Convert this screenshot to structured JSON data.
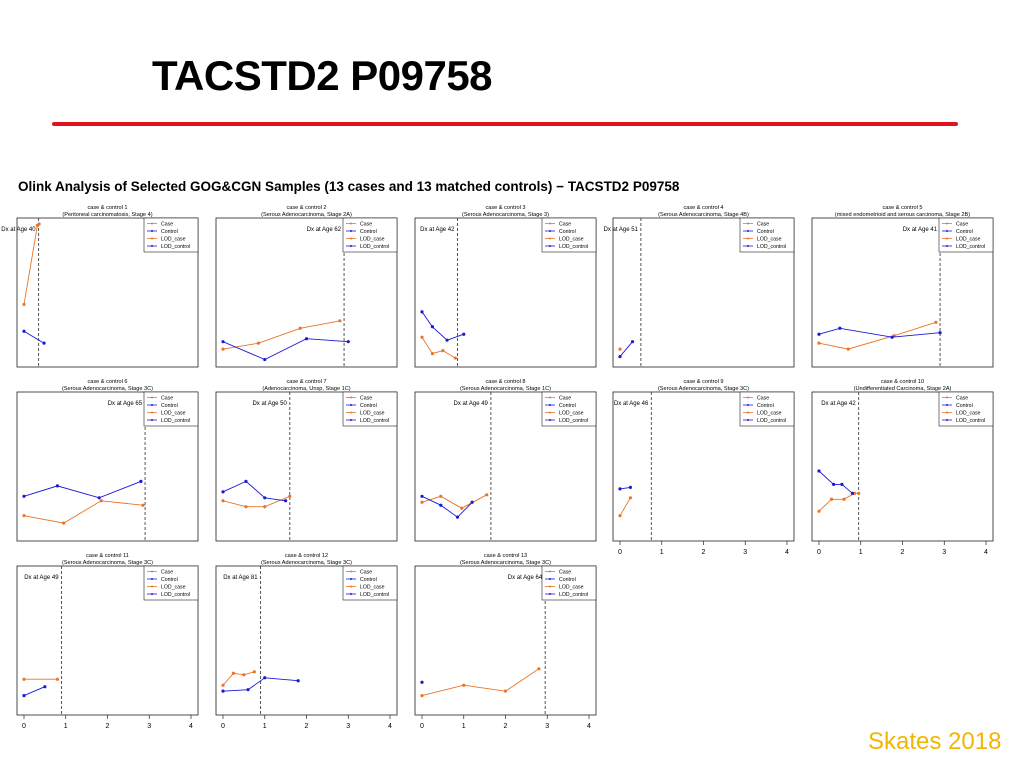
{
  "slide": {
    "title": "TACSTD2 P09758",
    "footer": "Skates 2018",
    "accent_color": "#e0141e",
    "footer_color": "#f2b600"
  },
  "chart_data": {
    "type": "line",
    "title": "Olink Analysis of Selected GOG&CGN Samples (13 cases and 13 matched controls) − TACSTD2 P09758",
    "xlim": [
      0,
      4
    ],
    "xticks": [
      0,
      1,
      2,
      3,
      4
    ],
    "legend": [
      "Case",
      "Control",
      "LOD_case",
      "LOD_control"
    ],
    "legend_position": "top-right",
    "colors": {
      "case": "#e8752a",
      "control": "#1a1ad6",
      "lod_case": "#e8752a",
      "lod_control": "#1a1ad6"
    },
    "panels": [
      {
        "title": "case & control 1",
        "subtitle": "(Peritoneal carcinomatosis, Stage 4)",
        "dx_label": "Dx at Age 40",
        "dx_time": 0.35,
        "case": {
          "x": [
            0.0,
            0.32,
            0.36
          ],
          "y": [
            0.42,
            0.95,
            0.96
          ]
        },
        "control": {
          "x": [
            0.0,
            0.48
          ],
          "y": [
            0.24,
            0.16
          ]
        }
      },
      {
        "title": "case & control 2",
        "subtitle": "(Serous Adenocarcinoma, Stage 2A)",
        "dx_label": "Dx at Age 62",
        "dx_time": 2.9,
        "case": {
          "x": [
            0.0,
            0.85,
            1.85,
            2.8
          ],
          "y": [
            0.12,
            0.16,
            0.26,
            0.31
          ]
        },
        "control": {
          "x": [
            0.0,
            1.0,
            2.0,
            3.0
          ],
          "y": [
            0.17,
            0.05,
            0.19,
            0.17
          ]
        }
      },
      {
        "title": "case & control 3",
        "subtitle": "(Serous Adenocarcinoma, Stage 3)",
        "dx_label": "Dx at Age 42",
        "dx_time": 0.85,
        "case": {
          "x": [
            0.0,
            0.25,
            0.5,
            0.8
          ],
          "y": [
            0.2,
            0.09,
            0.11,
            0.06
          ]
        },
        "control": {
          "x": [
            0.0,
            0.25,
            0.6,
            1.0
          ],
          "y": [
            0.37,
            0.27,
            0.18,
            0.22
          ]
        }
      },
      {
        "title": "case & control 4",
        "subtitle": "(Serous Adenocarcinoma, Stage 4B)",
        "dx_label": "Dx at Age 51",
        "dx_time": 0.5,
        "case": {
          "x": [
            0.0
          ],
          "y": [
            0.12
          ]
        },
        "control": {
          "x": [
            0.0,
            0.3
          ],
          "y": [
            0.07,
            0.17
          ]
        }
      },
      {
        "title": "case & control 5",
        "subtitle": "(mixed endometrioid and serous carcinoma, Stage 2B)",
        "dx_label": "Dx at Age 41",
        "dx_time": 2.9,
        "case": {
          "x": [
            0.0,
            0.7,
            1.8,
            2.8
          ],
          "y": [
            0.16,
            0.12,
            0.21,
            0.3
          ]
        },
        "control": {
          "x": [
            0.0,
            0.5,
            1.75,
            2.9
          ],
          "y": [
            0.22,
            0.26,
            0.2,
            0.23
          ]
        }
      },
      {
        "title": "case & control 6",
        "subtitle": "(Serous Adenocarcinoma, Stage 3C)",
        "dx_label": "Dx at Age 65",
        "dx_time": 2.9,
        "case": {
          "x": [
            0.0,
            0.95,
            1.85,
            2.85
          ],
          "y": [
            0.17,
            0.12,
            0.27,
            0.24
          ]
        },
        "control": {
          "x": [
            0.0,
            0.8,
            1.8,
            2.8
          ],
          "y": [
            0.3,
            0.37,
            0.29,
            0.4
          ]
        }
      },
      {
        "title": "case & control 7",
        "subtitle": "(Adenocarcinoma, Unsp, Stage 1C)",
        "dx_label": "Dx at Age 50",
        "dx_time": 1.6,
        "case": {
          "x": [
            0.0,
            0.55,
            1.0,
            1.6
          ],
          "y": [
            0.27,
            0.23,
            0.23,
            0.3
          ]
        },
        "control": {
          "x": [
            0.0,
            0.55,
            1.0,
            1.5
          ],
          "y": [
            0.33,
            0.4,
            0.29,
            0.27
          ]
        }
      },
      {
        "title": "case & control 8",
        "subtitle": "(Serous Adenocarcinoma, Stage 1C)",
        "dx_label": "Dx at Age 49",
        "dx_time": 1.65,
        "case": {
          "x": [
            0.0,
            0.45,
            0.95,
            1.55
          ],
          "y": [
            0.26,
            0.3,
            0.22,
            0.31
          ]
        },
        "control": {
          "x": [
            0.0,
            0.45,
            0.85,
            1.2
          ],
          "y": [
            0.3,
            0.24,
            0.16,
            0.26
          ]
        }
      },
      {
        "title": "case & control 9",
        "subtitle": "(Serous Adenocarcinoma, Stage 3C)",
        "dx_label": "Dx at Age 46",
        "dx_time": 0.75,
        "case": {
          "x": [
            0.0,
            0.25
          ],
          "y": [
            0.17,
            0.29
          ]
        },
        "control": {
          "x": [
            0.0,
            0.25
          ],
          "y": [
            0.35,
            0.36
          ]
        }
      },
      {
        "title": "case & control 10",
        "subtitle": "(Undifferentiated Carcinoma, Stage 2A)",
        "dx_label": "Dx at Age 42",
        "dx_time": 0.95,
        "case": {
          "x": [
            0.0,
            0.3,
            0.6,
            0.85,
            0.95
          ],
          "y": [
            0.2,
            0.28,
            0.28,
            0.32,
            0.32
          ]
        },
        "control": {
          "x": [
            0.0,
            0.35,
            0.55,
            0.8
          ],
          "y": [
            0.47,
            0.38,
            0.38,
            0.32
          ]
        }
      },
      {
        "title": "case & control 11",
        "subtitle": "(Serous Adenocarcinoma, Stage 3C)",
        "dx_label": "Dx at Age 49",
        "dx_time": 0.9,
        "case": {
          "x": [
            0.0,
            0.8
          ],
          "y": [
            0.24,
            0.24
          ]
        },
        "control": {
          "x": [
            0.0,
            0.5
          ],
          "y": [
            0.13,
            0.19
          ]
        }
      },
      {
        "title": "case & control 12",
        "subtitle": "(Serous Adenocarcinoma, Stage 3C)",
        "dx_label": "Dx at Age 81",
        "dx_time": 0.9,
        "case": {
          "x": [
            0.0,
            0.25,
            0.5,
            0.75
          ],
          "y": [
            0.2,
            0.28,
            0.27,
            0.29
          ]
        },
        "control": {
          "x": [
            0.0,
            0.6,
            1.0,
            1.8
          ],
          "y": [
            0.16,
            0.17,
            0.25,
            0.23
          ]
        }
      },
      {
        "title": "case & control 13",
        "subtitle": "(Serous Adenocarcinoma, Stage 3C)",
        "dx_label": "Dx at Age 64",
        "dx_time": 2.95,
        "case": {
          "x": [
            0.0,
            1.0,
            2.0,
            2.8
          ],
          "y": [
            0.13,
            0.2,
            0.16,
            0.31
          ]
        },
        "control": {
          "x": [
            0.0
          ],
          "y": [
            0.22
          ]
        }
      }
    ]
  }
}
